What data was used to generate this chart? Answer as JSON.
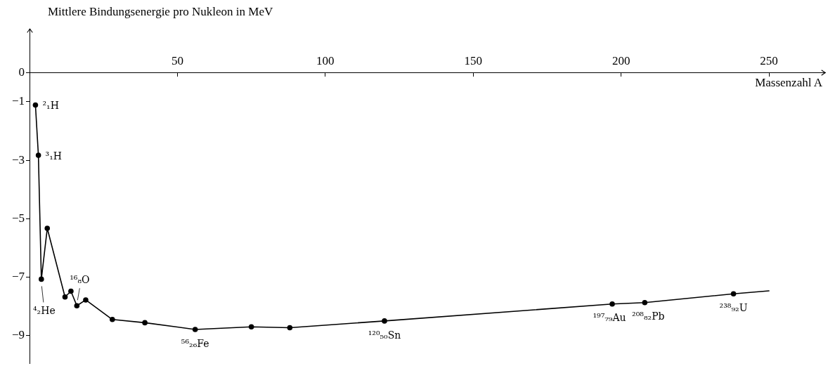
{
  "chart_data": {
    "type": "line",
    "ylabel": "Mittlere Bindungsenergie pro Nukleon in MeV",
    "xlabel": "Massenzahl A",
    "xlim": [
      0,
      269
    ],
    "xticks": [
      50,
      100,
      150,
      200,
      250
    ],
    "ylim": [
      -9.95,
      1.5
    ],
    "yticks": [
      0,
      {
        "value": -1,
        "label": "−1"
      },
      {
        "value": -3,
        "label": "−3"
      },
      {
        "value": -5,
        "label": "−5"
      },
      {
        "value": -7,
        "label": "−7"
      },
      {
        "value": -9,
        "label": "−9"
      }
    ],
    "grid": false,
    "legend": false,
    "line_style": "solid",
    "series": [
      {
        "color": "#000000",
        "marker": "circle",
        "x": [
          2,
          3,
          4,
          6,
          12,
          14,
          16,
          19,
          28,
          39,
          56,
          75,
          88,
          120,
          197,
          208,
          238
        ],
        "values": [
          -1.11,
          -2.83,
          -7.07,
          -5.33,
          -7.68,
          -7.48,
          -7.98,
          -7.78,
          -8.45,
          -8.56,
          -8.79,
          -8.7,
          -8.73,
          -8.5,
          -7.92,
          -7.87,
          -7.57
        ]
      },
      {
        "color": "#000000",
        "marker": "none",
        "x": [
          238,
          250
        ],
        "values": [
          -7.57,
          -7.47
        ]
      }
    ],
    "annotations": [
      {
        "text": "²₁H",
        "x": 2,
        "y": -1.11
      },
      {
        "text": "³₁H",
        "x": 3,
        "y": -2.83
      },
      {
        "text": "⁴₂He",
        "x": 4,
        "y": -7.07
      },
      {
        "text": "¹⁶₈O",
        "x": 16,
        "y": -7.98
      },
      {
        "text": "⁵⁶₂₆Fe",
        "x": 56,
        "y": -8.79
      },
      {
        "text": "¹²⁰₅₀Sn",
        "x": 120,
        "y": -8.5
      },
      {
        "text": "¹⁹⁷₇₉Au",
        "x": 197,
        "y": -7.92
      },
      {
        "text": "²⁰⁸₈₂Pb",
        "x": 208,
        "y": -7.87
      },
      {
        "text": "²³⁸₉₂U",
        "x": 238,
        "y": -7.57
      }
    ]
  }
}
